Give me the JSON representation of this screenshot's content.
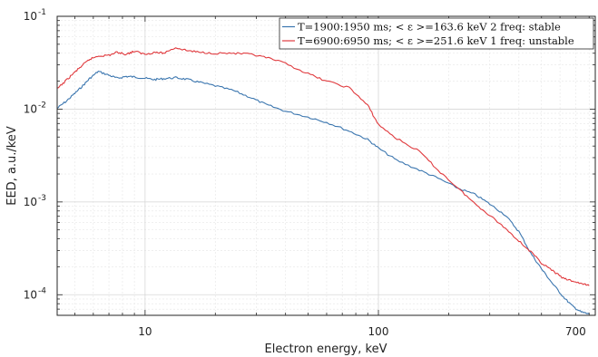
{
  "chart_data": {
    "type": "line",
    "xlabel": "Electron energy, keV",
    "ylabel": "EED, a.u./keV",
    "xscale": "log",
    "yscale": "log",
    "xlim": [
      4.2,
      850
    ],
    "ylim": [
      6e-05,
      0.1
    ],
    "grid": true,
    "legend_position": "top-right",
    "x_ticks": [
      {
        "value": 10,
        "label": "10"
      },
      {
        "value": 100,
        "label": "100"
      },
      {
        "value": 700,
        "label": "700"
      }
    ],
    "y_ticks": [
      {
        "value": 0.1,
        "base": "10",
        "exp": "-1"
      },
      {
        "value": 0.01,
        "base": "10",
        "exp": "-2"
      },
      {
        "value": 0.001,
        "base": "10",
        "exp": "-3"
      },
      {
        "value": 0.0001,
        "base": "10",
        "exp": "-4"
      }
    ],
    "series": [
      {
        "name": "T=1900:1950 ms; < ε >=163.6 keV 2 freq: stable",
        "color": "#3b76af",
        "x": [
          4.2,
          4.6,
          5.0,
          5.4,
          5.8,
          6.3,
          7.0,
          7.6,
          8.3,
          9.0,
          10,
          11,
          12,
          13.5,
          15,
          17,
          20,
          24,
          28,
          33,
          40,
          50,
          60,
          75,
          90,
          100,
          120,
          150,
          180,
          220,
          260,
          300,
          350,
          400,
          450,
          500,
          560,
          620,
          680,
          740,
          800
        ],
        "y": [
          0.0102,
          0.0122,
          0.0148,
          0.0178,
          0.0215,
          0.0255,
          0.0232,
          0.0215,
          0.0225,
          0.0222,
          0.0215,
          0.0208,
          0.0213,
          0.0218,
          0.021,
          0.0195,
          0.0178,
          0.0158,
          0.0135,
          0.0112,
          0.0095,
          0.0082,
          0.0072,
          0.0058,
          0.0047,
          0.0038,
          0.0028,
          0.0022,
          0.0018,
          0.0014,
          0.0012,
          0.00095,
          0.00072,
          0.00048,
          0.00028,
          0.00019,
          0.00013,
          9.5e-05,
          7.5e-05,
          6.5e-05,
          6.2e-05
        ]
      },
      {
        "name": "T=6900:6950 ms; < ε >=251.6 keV 1 freq: unstable",
        "color": "#e03a3e",
        "x": [
          4.2,
          4.6,
          5.0,
          5.4,
          5.8,
          6.3,
          7.0,
          7.6,
          8.3,
          9.0,
          10,
          11,
          12,
          13.5,
          15,
          17,
          20,
          24,
          28,
          33,
          40,
          50,
          60,
          75,
          90,
          100,
          120,
          150,
          180,
          220,
          260,
          300,
          350,
          400,
          450,
          500,
          560,
          620,
          680,
          740,
          800
        ],
        "y": [
          0.0165,
          0.0205,
          0.025,
          0.0298,
          0.0345,
          0.0375,
          0.038,
          0.041,
          0.039,
          0.042,
          0.039,
          0.041,
          0.04,
          0.046,
          0.043,
          0.041,
          0.04,
          0.04,
          0.039,
          0.036,
          0.031,
          0.024,
          0.02,
          0.017,
          0.011,
          0.0068,
          0.0048,
          0.0035,
          0.0022,
          0.0014,
          0.00095,
          0.00072,
          0.00052,
          0.00038,
          0.00029,
          0.00022,
          0.00018,
          0.00015,
          0.00014,
          0.000132,
          0.000125
        ]
      }
    ]
  }
}
